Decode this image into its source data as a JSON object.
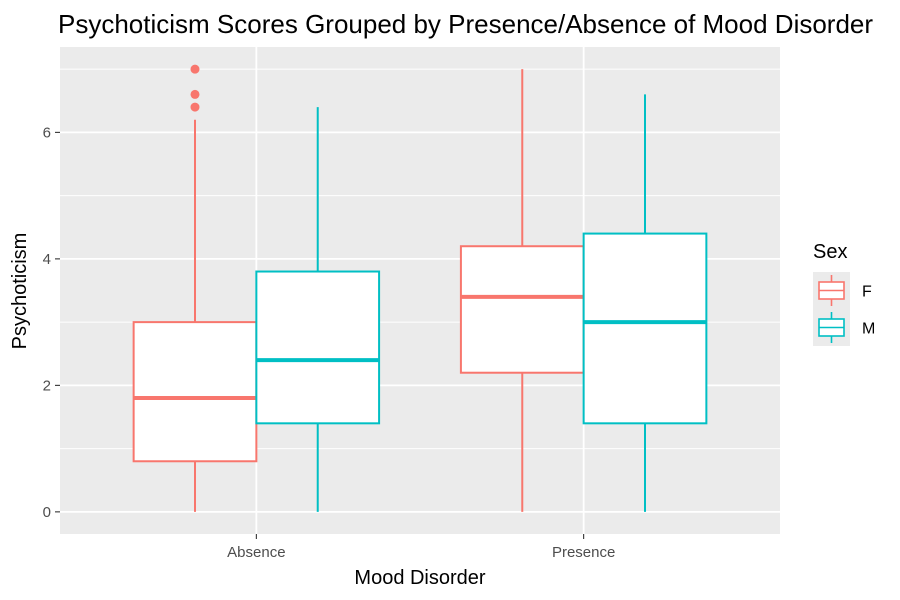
{
  "chart_data": {
    "type": "boxplot",
    "title": "Psychoticism Scores Grouped by Presence/Absence of Mood Disorder",
    "xlabel": "Mood Disorder",
    "ylabel": "Psychoticism",
    "categories": [
      "Absence",
      "Presence"
    ],
    "ylim": [
      -0.35,
      7.35
    ],
    "yticks": [
      0,
      2,
      4,
      6
    ],
    "grid": true,
    "legend": {
      "title": "Sex",
      "position": "right"
    },
    "series": [
      {
        "name": "F",
        "color": "#F8766D",
        "boxes": [
          {
            "category": "Absence",
            "min": 0,
            "q1": 0.8,
            "median": 1.8,
            "q3": 3.0,
            "max": 6.2,
            "outliers": [
              6.4,
              6.6,
              7.0
            ]
          },
          {
            "category": "Presence",
            "min": 0,
            "q1": 2.2,
            "median": 3.4,
            "q3": 4.2,
            "max": 7.0,
            "outliers": []
          }
        ]
      },
      {
        "name": "M",
        "color": "#00BFC4",
        "boxes": [
          {
            "category": "Absence",
            "min": 0,
            "q1": 1.4,
            "median": 2.4,
            "q3": 3.8,
            "max": 6.4,
            "outliers": []
          },
          {
            "category": "Presence",
            "min": 0,
            "q1": 1.4,
            "median": 3.0,
            "q3": 4.4,
            "max": 6.6,
            "outliers": []
          }
        ]
      }
    ]
  }
}
